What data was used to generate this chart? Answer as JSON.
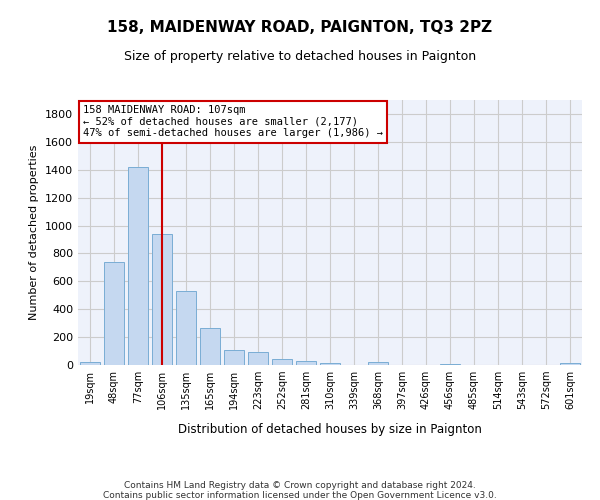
{
  "title": "158, MAIDENWAY ROAD, PAIGNTON, TQ3 2PZ",
  "subtitle": "Size of property relative to detached houses in Paignton",
  "xlabel": "Distribution of detached houses by size in Paignton",
  "ylabel": "Number of detached properties",
  "bar_labels": [
    "19sqm",
    "48sqm",
    "77sqm",
    "106sqm",
    "135sqm",
    "165sqm",
    "194sqm",
    "223sqm",
    "252sqm",
    "281sqm",
    "310sqm",
    "339sqm",
    "368sqm",
    "397sqm",
    "426sqm",
    "456sqm",
    "485sqm",
    "514sqm",
    "543sqm",
    "572sqm",
    "601sqm"
  ],
  "bar_values": [
    22,
    740,
    1420,
    940,
    530,
    265,
    105,
    95,
    40,
    28,
    16,
    0,
    18,
    0,
    0,
    5,
    0,
    0,
    0,
    0,
    14
  ],
  "bar_color": "#c5d8f0",
  "bar_edge_color": "#7aadd4",
  "property_bin_index": 3,
  "annotation_text": "158 MAIDENWAY ROAD: 107sqm\n← 52% of detached houses are smaller (2,177)\n47% of semi-detached houses are larger (1,986) →",
  "vline_color": "#cc0000",
  "annotation_box_color": "#ffffff",
  "annotation_box_edge": "#cc0000",
  "grid_color": "#cccccc",
  "background_color": "#eef2fb",
  "ylim": [
    0,
    1900
  ],
  "yticks": [
    0,
    200,
    400,
    600,
    800,
    1000,
    1200,
    1400,
    1600,
    1800
  ],
  "footer_line1": "Contains HM Land Registry data © Crown copyright and database right 2024.",
  "footer_line2": "Contains public sector information licensed under the Open Government Licence v3.0."
}
